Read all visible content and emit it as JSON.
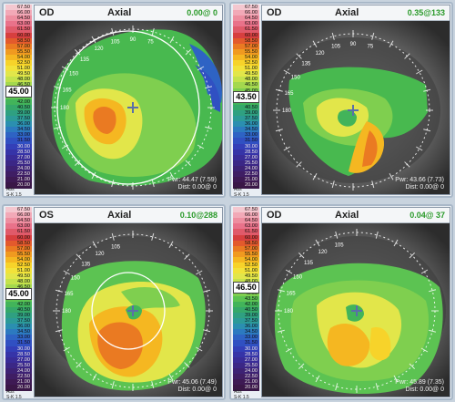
{
  "scale_ticks": [
    "67.50",
    "66.00",
    "64.50",
    "63.00",
    "61.50",
    "60.00",
    "58.50",
    "57.00",
    "55.50",
    "54.00",
    "52.50",
    "51.00",
    "49.50",
    "48.00",
    "46.50",
    "45.00",
    "43.50",
    "42.00",
    "40.50",
    "39.00",
    "37.50",
    "36.00",
    "34.50",
    "33.00",
    "31.50",
    "30.00",
    "28.50",
    "27.00",
    "25.50",
    "24.00",
    "22.50",
    "21.00",
    "20.00"
  ],
  "scale_colors": [
    "#f4c7cf",
    "#f2a9b7",
    "#ee8ea0",
    "#e9728a",
    "#e05a6a",
    "#d73f3f",
    "#e35a2c",
    "#ea7a22",
    "#f09a20",
    "#f5b721",
    "#f7d32a",
    "#f2e23a",
    "#e2e64a",
    "#c5e24c",
    "#a4d84e",
    "#7fcf4f",
    "#5cc352",
    "#42b45a",
    "#35a86a",
    "#2fa081",
    "#2c9a98",
    "#2b8fb0",
    "#2c7ac0",
    "#2e63c4",
    "#3050c2",
    "#333fb8",
    "#3634a8",
    "#392c98",
    "#3b2786",
    "#3d2274",
    "#3f1e64",
    "#3e1a54",
    "#3a1747"
  ],
  "panels": [
    {
      "eye": "OD",
      "mode": "Axial",
      "pwr": "0.00@ 0",
      "highlight": "45.00",
      "read1": "Pwr: 44.47 (7.59)",
      "read2": "Dist: 0.00@ 0",
      "foot1": "Abs",
      "foot2": "S-K 1.5",
      "degrees": [
        "105",
        "120",
        "135",
        "150",
        "165",
        "180",
        "90",
        "75"
      ]
    },
    {
      "eye": "OD",
      "mode": "Axial",
      "pwr": "0.35@133",
      "highlight": "43.50",
      "read1": "Pwr: 43.66 (7.73)",
      "read2": "Dist: 0.00@ 0",
      "foot1": "Abs",
      "foot2": "S-K 1.5",
      "degrees": [
        "90",
        "75",
        "105",
        "120",
        "135",
        "150",
        "165",
        "180"
      ]
    },
    {
      "eye": "OS",
      "mode": "Axial",
      "pwr": "0.10@288",
      "highlight": "45.00",
      "read1": "Pwr: 45.06 (7.49)",
      "read2": "Dist: 0.00@ 0",
      "foot1": "Abs",
      "foot2": "S-K 1.5",
      "degrees": [
        "105",
        "120",
        "135",
        "150",
        "165",
        "180"
      ]
    },
    {
      "eye": "OD",
      "mode": "Axial",
      "pwr": "0.04@ 37",
      "highlight": "46.50",
      "read1": "Pwr: 45.89 (7.35)",
      "read2": "Dist: 0.00@ 0",
      "foot1": "Abs",
      "foot2": "S-K 1.5",
      "degrees": [
        "105",
        "120",
        "135",
        "150",
        "165",
        "180"
      ]
    }
  ]
}
